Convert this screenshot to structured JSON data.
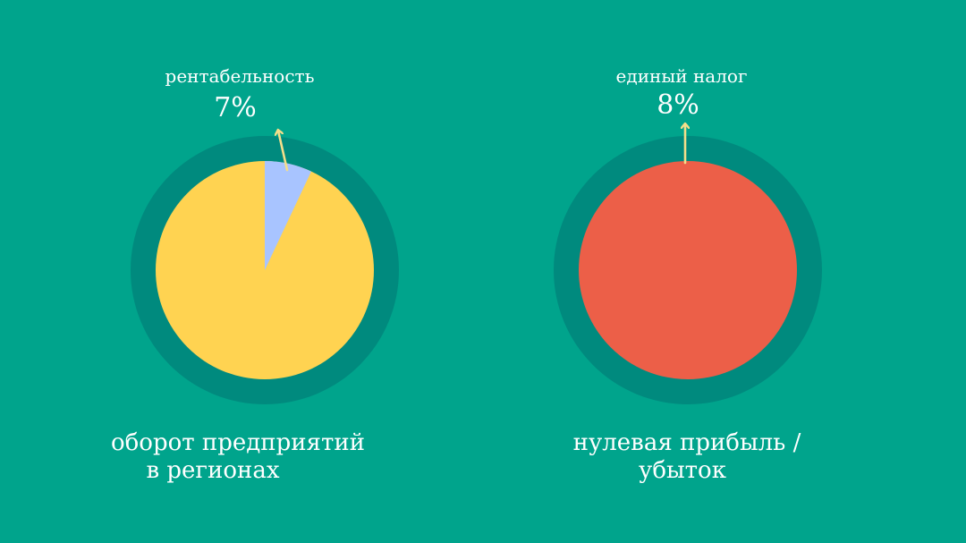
{
  "chart_data": [
    {
      "type": "pie",
      "slices": [
        {
          "label": "рентабельность",
          "value": 7,
          "value_label": "7%",
          "color": "#a8c4ff"
        },
        {
          "label": "",
          "value": 93,
          "value_label": "",
          "color": "#ffd351"
        }
      ],
      "caption_lines": [
        "оборот предприятий",
        "в регионах"
      ],
      "ring_color": "#008a7e"
    },
    {
      "type": "pie",
      "slices": [
        {
          "label": "",
          "value": 100,
          "value_label": "",
          "color": "#ec5f48"
        }
      ],
      "callout": {
        "label": "единый налог",
        "value_label": "8%"
      },
      "caption_lines": [
        "нулевая прибыль /",
        "убыток"
      ],
      "ring_color": "#008a7e"
    }
  ],
  "colors": {
    "background": "#00a48c",
    "arrow": "#f4de8a",
    "text": "#ffffff"
  }
}
